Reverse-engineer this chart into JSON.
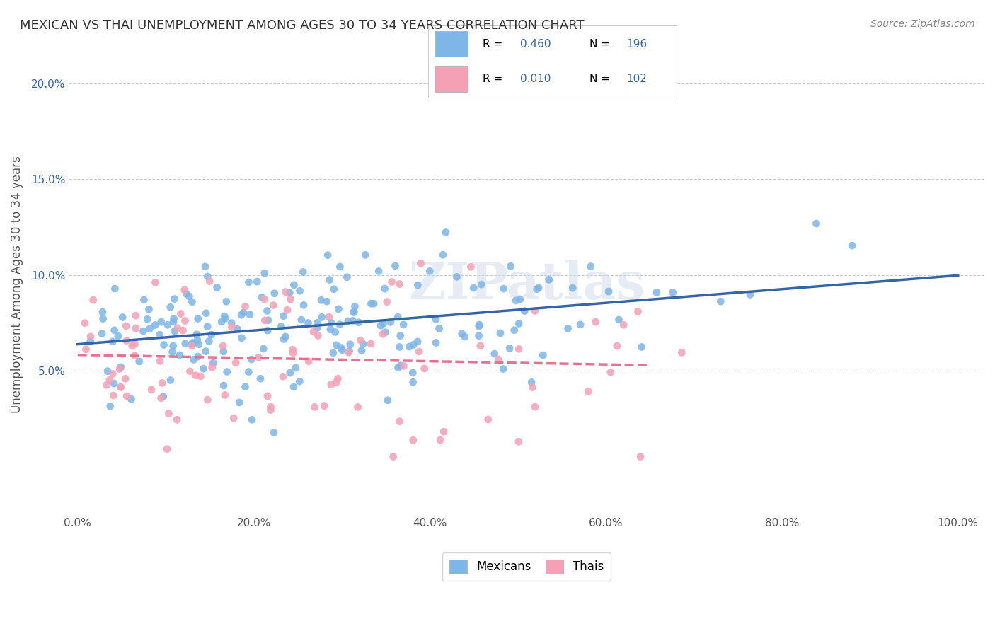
{
  "title": "MEXICAN VS THAI UNEMPLOYMENT AMONG AGES 30 TO 34 YEARS CORRELATION CHART",
  "source": "Source: ZipAtlas.com",
  "xlabel_ticks": [
    "0.0%",
    "20.0%",
    "40.0%",
    "60.0%",
    "80.0%",
    "100.0%"
  ],
  "ylabel_ticks": [
    "",
    "5.0%",
    "10.0%",
    "15.0%",
    "20.0%"
  ],
  "ylabel_label": "Unemployment Among Ages 30 to 34 years",
  "legend_labels": [
    "Mexicans",
    "Thais"
  ],
  "mexican_color": "#7EB6E8",
  "thai_color": "#F4A0B5",
  "mexican_line_color": "#3465A4",
  "thai_line_color": "#E87090",
  "mexican_R": 0.46,
  "mexican_N": 196,
  "thai_R": 0.01,
  "thai_N": 102,
  "legend_text_color": "#3465A4",
  "title_color": "#333333",
  "watermark": "ZIPatlas",
  "xlim": [
    0.0,
    1.0
  ],
  "ylim": [
    -0.02,
    0.21
  ],
  "background_color": "#ffffff",
  "grid_color": "#cccccc"
}
